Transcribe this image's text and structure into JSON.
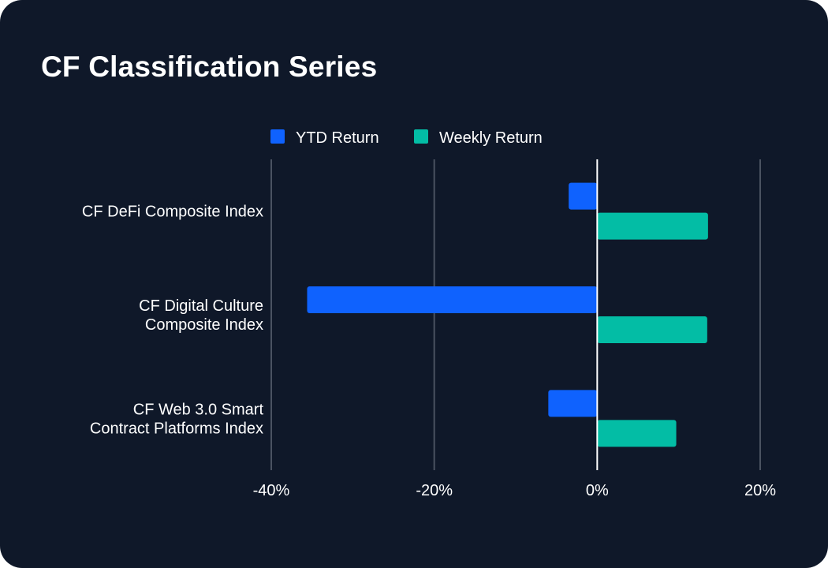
{
  "chart_data": {
    "type": "bar",
    "orientation": "horizontal",
    "title": "CF Classification Series",
    "categories": [
      [
        "CF DeFi Composite Index"
      ],
      [
        "CF Digital Culture",
        "Composite Index"
      ],
      [
        "CF Web 3.0 Smart",
        "Contract Platforms Index"
      ]
    ],
    "series": [
      {
        "name": "YTD Return",
        "color": "#0f62fe",
        "values": [
          -3.5,
          -35.6,
          -6.0
        ]
      },
      {
        "name": "Weekly Return",
        "color": "#03bda5",
        "values": [
          13.6,
          13.5,
          9.7
        ]
      }
    ],
    "xlim": [
      -40,
      20
    ],
    "xticks": [
      -40,
      -20,
      0,
      20
    ],
    "tick_suffix": "%",
    "grid": true,
    "legend_position": "top-center",
    "colors": {
      "background": "#0f1829",
      "gridline": "#4a5261",
      "zero_line": "#ffffff",
      "text": "#ffffff"
    }
  }
}
